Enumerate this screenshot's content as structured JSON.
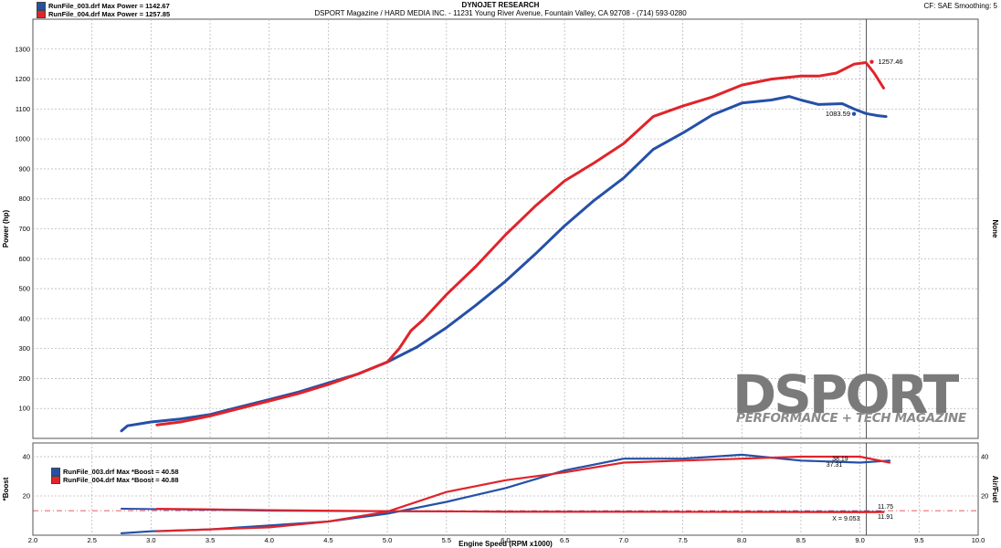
{
  "header": {
    "company": "DYNOJET RESEARCH",
    "address": "DSPORT Magazine / HARD MEDIA INC. - 11231 Young River Avenue, Fountain Valley, CA 92708 - (714) 593-0280",
    "settings": "CF: SAE  Smoothing: 5"
  },
  "watermark": {
    "brand": "DSPORT",
    "tagline": "PERFORMANCE + TECH MAGAZINE"
  },
  "colors": {
    "run003": "#2550a8",
    "run004": "#e0242a",
    "refline": "#e0242a",
    "grid": "#bbbbbb"
  },
  "chart_data": [
    {
      "type": "line",
      "title": "",
      "xlabel": "",
      "ylabel": "Power (hp)",
      "y2label": "None",
      "xlim": [
        2.0,
        10.0
      ],
      "ylim": [
        0,
        1400
      ],
      "grid": true,
      "legend_position": "top-left",
      "x_ticks": [
        "2.0",
        "2.5",
        "3.0",
        "3.5",
        "4.0",
        "4.5",
        "5.0",
        "5.5",
        "6.0",
        "6.5",
        "7.0",
        "7.5",
        "8.0",
        "8.5",
        "9.0",
        "9.5",
        "10.0"
      ],
      "y_ticks": [
        "100",
        "200",
        "300",
        "400",
        "500",
        "600",
        "700",
        "800",
        "900",
        "1000",
        "1100",
        "1200",
        "1300"
      ],
      "series": [
        {
          "name": "RunFile_003.drf Max Power = 1142.67",
          "color": "#2550a8",
          "x": [
            2.75,
            2.8,
            3.0,
            3.25,
            3.5,
            3.75,
            4.0,
            4.25,
            4.5,
            4.75,
            5.0,
            5.25,
            5.5,
            5.75,
            6.0,
            6.25,
            6.5,
            6.75,
            7.0,
            7.25,
            7.5,
            7.75,
            8.0,
            8.25,
            8.4,
            8.5,
            8.65,
            8.85,
            8.95,
            9.05,
            9.15,
            9.22
          ],
          "y": [
            25,
            42,
            55,
            65,
            80,
            105,
            130,
            155,
            185,
            215,
            255,
            305,
            370,
            445,
            525,
            615,
            710,
            795,
            870,
            965,
            1020,
            1080,
            1120,
            1130,
            1142,
            1130,
            1115,
            1118,
            1100,
            1085,
            1078,
            1075
          ]
        },
        {
          "name": "RunFile_004.drf Max Power = 1257.85",
          "color": "#e0242a",
          "x": [
            3.05,
            3.25,
            3.5,
            3.75,
            4.0,
            4.25,
            4.5,
            4.75,
            5.0,
            5.1,
            5.2,
            5.3,
            5.5,
            5.75,
            6.0,
            6.25,
            6.5,
            6.75,
            7.0,
            7.25,
            7.5,
            7.75,
            8.0,
            8.25,
            8.5,
            8.65,
            8.8,
            8.95,
            9.05,
            9.12,
            9.2
          ],
          "y": [
            45,
            55,
            75,
            100,
            125,
            150,
            180,
            215,
            255,
            300,
            360,
            395,
            480,
            575,
            680,
            775,
            860,
            920,
            985,
            1075,
            1110,
            1140,
            1180,
            1200,
            1210,
            1210,
            1220,
            1250,
            1255,
            1220,
            1170
          ]
        }
      ],
      "annotations": [
        {
          "text": "1257.46",
          "x": 9.13,
          "y": 1257.46,
          "color": "#e0242a"
        },
        {
          "text": "1083.59",
          "x": 8.98,
          "y": 1083.59,
          "color": "#2550a8"
        }
      ],
      "cursor_x": 9.053
    },
    {
      "type": "line",
      "title": "",
      "xlabel": "Engine Speed (RPM x1000)",
      "ylabel": "*Boost",
      "y2label": "Air/Fuel",
      "xlim": [
        2.0,
        10.0
      ],
      "ylim": [
        0,
        47
      ],
      "grid": true,
      "legend_position": "top-left",
      "x_ticks": [
        "2.0",
        "2.5",
        "3.0",
        "3.5",
        "4.0",
        "4.5",
        "5.0",
        "5.5",
        "6.0",
        "6.5",
        "7.0",
        "7.5",
        "8.0",
        "8.5",
        "9.0",
        "9.5",
        "10.0"
      ],
      "y_ticks": [
        "20",
        "40"
      ],
      "y2_ticks": [
        "20",
        "40"
      ],
      "cursor_label": "X = 9.053",
      "series": [
        {
          "name": "RunFile_003.drf Max *Boost = 40.58",
          "color": "#2550a8",
          "axis": "left",
          "x": [
            2.75,
            3.0,
            3.5,
            4.0,
            4.5,
            5.0,
            5.5,
            6.0,
            6.5,
            7.0,
            7.5,
            8.0,
            8.5,
            9.0,
            9.25
          ],
          "y": [
            1,
            2,
            3,
            5,
            7,
            11,
            17,
            24,
            33,
            39,
            39,
            41,
            38,
            37,
            38
          ]
        },
        {
          "name": "RunFile_004.drf Max *Boost = 40.88",
          "color": "#e0242a",
          "axis": "left",
          "x": [
            3.05,
            3.5,
            4.0,
            4.5,
            5.0,
            5.5,
            6.0,
            6.5,
            7.0,
            7.5,
            8.0,
            8.5,
            9.0,
            9.25
          ],
          "y": [
            2,
            3,
            4,
            7,
            12,
            22,
            28,
            32,
            37,
            38,
            39,
            40,
            40,
            37
          ]
        },
        {
          "name": "RunFile_003.drf Air/Fuel",
          "color": "#2550a8",
          "axis": "right",
          "x": [
            2.75,
            3.5,
            4.0,
            5.0,
            6.0,
            7.0,
            8.0,
            9.0,
            9.2
          ],
          "y": [
            13.5,
            13,
            12.5,
            12.2,
            12.0,
            12.0,
            11.9,
            11.9,
            11.9
          ]
        },
        {
          "name": "RunFile_004.drf Air/Fuel",
          "color": "#e0242a",
          "axis": "right",
          "x": [
            3.05,
            3.5,
            4.0,
            5.0,
            6.0,
            7.0,
            8.0,
            9.0,
            9.2
          ],
          "y": [
            13.5,
            13.2,
            12.8,
            12.3,
            12.0,
            11.9,
            11.8,
            11.7,
            11.75
          ]
        }
      ],
      "annotations": [
        {
          "text": "38.19",
          "x": 8.9,
          "y": 39,
          "color": "#e0242a"
        },
        {
          "text": "37.31",
          "x": 8.85,
          "y": 36,
          "color": "#2550a8"
        },
        {
          "text": "11.75",
          "x": 9.15,
          "y": 14.6,
          "color": "#e0242a"
        },
        {
          "text": "11.91",
          "x": 9.15,
          "y": 9.5,
          "color": "#2550a8"
        }
      ]
    }
  ]
}
